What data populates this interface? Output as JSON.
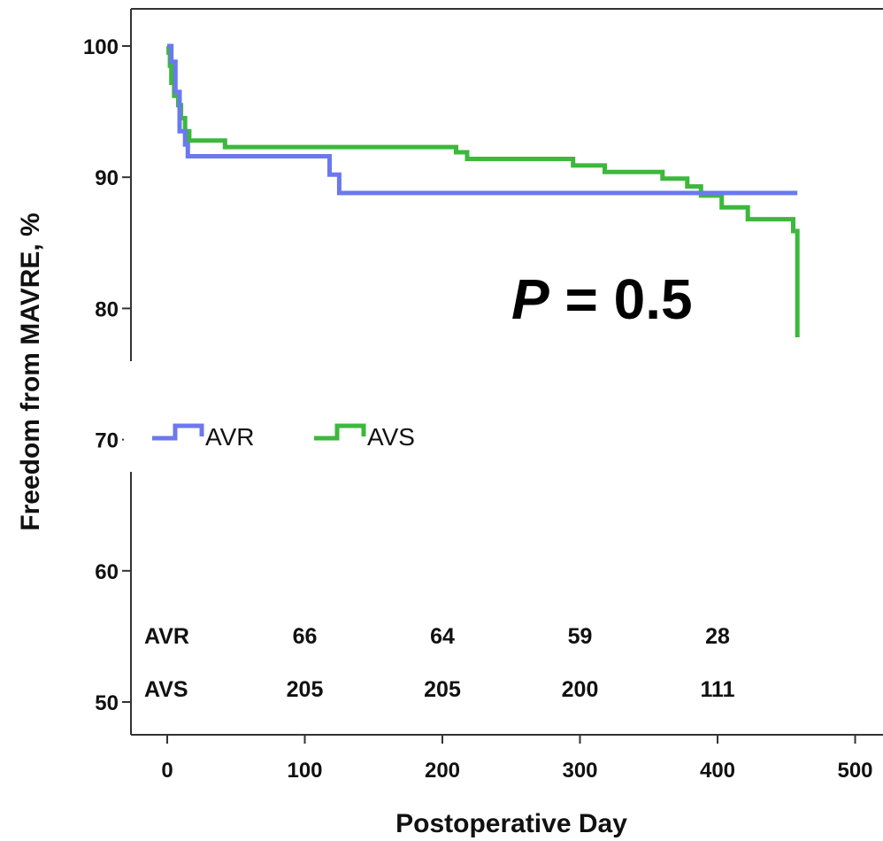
{
  "chart_data": {
    "type": "line",
    "subtype": "kaplan-meier step curve",
    "title": "",
    "xlabel": "Postoperative Day",
    "ylabel": "Freedom from MAVRE, %",
    "xlim": [
      -12,
      520
    ],
    "ylim": [
      49,
      106
    ],
    "x_ticks": [
      0,
      100,
      200,
      300,
      400,
      500
    ],
    "y_ticks": [
      50,
      60,
      70,
      80,
      90,
      100
    ],
    "grid": false,
    "legend_position": "left",
    "annotation": {
      "italic": "P",
      "rest": " = 0.5"
    },
    "series": [
      {
        "name": "AVR",
        "color": "#6b78f0",
        "points": [
          [
            0,
            100
          ],
          [
            3,
            100
          ],
          [
            3,
            98.8
          ],
          [
            6,
            98.8
          ],
          [
            6,
            96.5
          ],
          [
            9,
            96.5
          ],
          [
            9,
            93.5
          ],
          [
            13,
            93.5
          ],
          [
            13,
            92.5
          ],
          [
            15,
            92.5
          ],
          [
            15,
            91.6
          ],
          [
            118,
            91.6
          ],
          [
            118,
            90.2
          ],
          [
            125,
            90.2
          ],
          [
            125,
            88.8
          ],
          [
            458,
            88.8
          ]
        ]
      },
      {
        "name": "AVS",
        "color": "#3cb83c",
        "points": [
          [
            0,
            100
          ],
          [
            1,
            100
          ],
          [
            1,
            99.5
          ],
          [
            2,
            99.5
          ],
          [
            2,
            98.5
          ],
          [
            3,
            98.5
          ],
          [
            3,
            97.2
          ],
          [
            5,
            97.2
          ],
          [
            5,
            96.2
          ],
          [
            8,
            96.2
          ],
          [
            8,
            95.5
          ],
          [
            10,
            95.5
          ],
          [
            10,
            94.5
          ],
          [
            13,
            94.5
          ],
          [
            13,
            93.5
          ],
          [
            16,
            93.5
          ],
          [
            16,
            92.8
          ],
          [
            42,
            92.8
          ],
          [
            42,
            92.3
          ],
          [
            210,
            92.3
          ],
          [
            210,
            91.9
          ],
          [
            218,
            91.9
          ],
          [
            218,
            91.4
          ],
          [
            295,
            91.4
          ],
          [
            295,
            90.9
          ],
          [
            318,
            90.9
          ],
          [
            318,
            90.4
          ],
          [
            360,
            90.4
          ],
          [
            360,
            89.9
          ],
          [
            378,
            89.9
          ],
          [
            378,
            89.3
          ],
          [
            388,
            89.3
          ],
          [
            388,
            88.6
          ],
          [
            403,
            88.6
          ],
          [
            403,
            87.7
          ],
          [
            422,
            87.7
          ],
          [
            422,
            86.8
          ],
          [
            455,
            86.8
          ],
          [
            455,
            85.9
          ],
          [
            458,
            85.9
          ],
          [
            458,
            77.8
          ]
        ]
      }
    ],
    "risk_table": {
      "rows": [
        {
          "label": "AVR",
          "values": [
            "66",
            "64",
            "59",
            "28"
          ]
        },
        {
          "label": "AVS",
          "values": [
            "205",
            "205",
            "200",
            "111"
          ]
        }
      ],
      "x_positions": [
        100,
        200,
        300,
        400
      ]
    }
  }
}
